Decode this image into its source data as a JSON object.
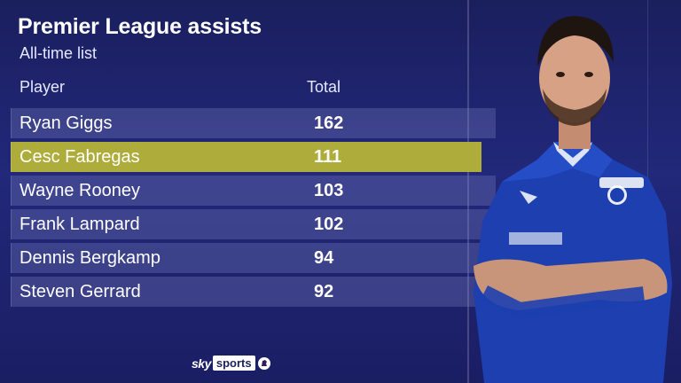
{
  "header": {
    "title": "Premier League assists",
    "subtitle": "All-time list"
  },
  "columns": {
    "player": "Player",
    "total": "Total"
  },
  "rows": [
    {
      "name": "Ryan Giggs",
      "total": "162",
      "bar_fraction": 1.0,
      "highlight": false
    },
    {
      "name": "Cesc Fabregas",
      "total": "111",
      "bar_fraction": 0.685,
      "highlight": true
    },
    {
      "name": "Wayne Rooney",
      "total": "103",
      "bar_fraction": 0.636,
      "highlight": false
    },
    {
      "name": "Frank Lampard",
      "total": "102",
      "bar_fraction": 0.63,
      "highlight": false
    },
    {
      "name": "Dennis Bergkamp",
      "total": "94",
      "bar_fraction": 0.58,
      "highlight": false
    },
    {
      "name": "Steven Gerrard",
      "total": "92",
      "bar_fraction": 0.568,
      "highlight": false
    }
  ],
  "footer": {
    "brand_sky": "sky",
    "brand_sports": "sports"
  },
  "colors": {
    "background": "#1f2470",
    "row": "#4d5498",
    "highlight": "#aeac3a",
    "kit": "#1d3fb0"
  },
  "icons": {
    "player_photo": "player-illustration",
    "league_logo": "premier-league-lion-icon"
  }
}
